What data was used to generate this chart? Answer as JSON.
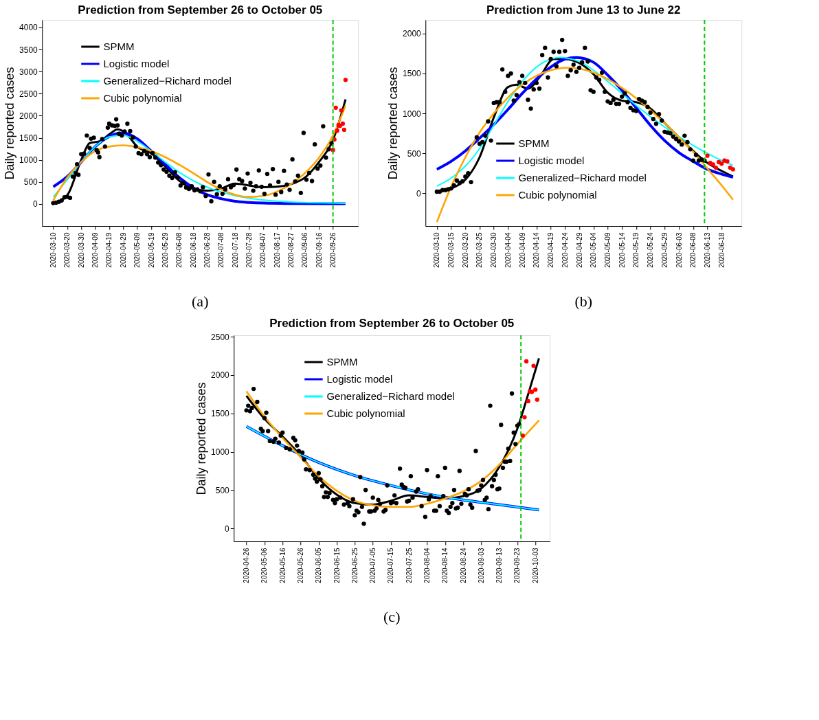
{
  "chart_data": [
    {
      "type": "line",
      "title": "Prediction from September 26 to October 05",
      "ylabel": "Daily reported cases",
      "annotations": [
        "(a)"
      ],
      "legend": "top left",
      "grid": false,
      "xlim": [
        "2020-03-02",
        "2020-10-14"
      ],
      "ylim": [
        -500,
        4170
      ],
      "xticks": [
        "2020-03-10",
        "2020-03-20",
        "2020-03-30",
        "2020-04-09",
        "2020-04-19",
        "2020-04-29",
        "2020-05-09",
        "2020-05-19",
        "2020-05-29",
        "2020-06-08",
        "2020-06-18",
        "2020-06-28",
        "2020-07-08",
        "2020-07-18",
        "2020-07-28",
        "2020-08-07",
        "2020-08-17",
        "2020-08-27",
        "2020-09-06",
        "2020-09-16",
        "2020-09-26"
      ],
      "yticks": [
        0,
        500,
        1000,
        1500,
        2000,
        2500,
        3000,
        3500,
        4000
      ],
      "ref_lines": [
        {
          "axis": "x",
          "value": "2020-09-26",
          "color": "#00cc00",
          "line_style": "dashed"
        }
      ],
      "series": [
        {
          "type": "scatter",
          "marker": "circle",
          "color": "#000000",
          "x": [
            "2020-03-10",
            "2020-03-12",
            "2020-03-14",
            "2020-03-16",
            "2020-03-18",
            "2020-03-20",
            "2020-03-22",
            "2020-03-24",
            "2020-03-26",
            "2020-03-27",
            "2020-03-28",
            "2020-03-30",
            "2020-04-01",
            "2020-04-03",
            "2020-04-05",
            "2020-04-06",
            "2020-04-08",
            "2020-04-10",
            "2020-04-11",
            "2020-04-12",
            "2020-04-14",
            "2020-04-16",
            "2020-04-18",
            "2020-04-19",
            "2020-04-21",
            "2020-04-23",
            "2020-04-24",
            "2020-04-25",
            "2020-04-26",
            "2020-04-28",
            "2020-04-30",
            "2020-05-02",
            "2020-05-04",
            "2020-05-06",
            "2020-05-08",
            "2020-05-10",
            "2020-05-12",
            "2020-05-14",
            "2020-05-16",
            "2020-05-18",
            "2020-05-20",
            "2020-05-22",
            "2020-05-24",
            "2020-05-26",
            "2020-05-28",
            "2020-05-30",
            "2020-06-01",
            "2020-06-03",
            "2020-06-05",
            "2020-06-07",
            "2020-06-09",
            "2020-06-11",
            "2020-06-13",
            "2020-06-15",
            "2020-06-17",
            "2020-06-19",
            "2020-06-21",
            "2020-06-23",
            "2020-06-25",
            "2020-06-27",
            "2020-06-29",
            "2020-07-01",
            "2020-07-03",
            "2020-07-05",
            "2020-07-07",
            "2020-07-09",
            "2020-07-11",
            "2020-07-13",
            "2020-07-15",
            "2020-07-17",
            "2020-07-19",
            "2020-07-21",
            "2020-07-23",
            "2020-07-25",
            "2020-07-27",
            "2020-07-29",
            "2020-07-31",
            "2020-08-02",
            "2020-08-04",
            "2020-08-06",
            "2020-08-08",
            "2020-08-10",
            "2020-08-12",
            "2020-08-14",
            "2020-08-16",
            "2020-08-18",
            "2020-08-20",
            "2020-08-22",
            "2020-08-24",
            "2020-08-26",
            "2020-08-28",
            "2020-08-30",
            "2020-09-01",
            "2020-09-03",
            "2020-09-05",
            "2020-09-07",
            "2020-09-09",
            "2020-09-11",
            "2020-09-13",
            "2020-09-15",
            "2020-09-17",
            "2020-09-19",
            "2020-09-21",
            "2020-09-23",
            "2020-09-25"
          ],
          "values": [
            20,
            30,
            50,
            80,
            150,
            160,
            140,
            620,
            700,
            900,
            660,
            1130,
            1140,
            1550,
            1270,
            1480,
            1500,
            1220,
            1170,
            1060,
            1470,
            1300,
            1730,
            1820,
            1780,
            1770,
            1920,
            1780,
            1590,
            1550,
            1640,
            1820,
            1650,
            1510,
            1300,
            1150,
            1130,
            1200,
            1130,
            1060,
            1150,
            1050,
            940,
            880,
            780,
            730,
            640,
            590,
            720,
            600,
            420,
            480,
            370,
            340,
            400,
            310,
            330,
            290,
            380,
            180,
            670,
            60,
            500,
            220,
            400,
            230,
            330,
            560,
            380,
            430,
            780,
            560,
            520,
            350,
            690,
            480,
            300,
            400,
            760,
            390,
            230,
            680,
            420,
            790,
            210,
            500,
            270,
            750,
            440,
            320,
            1010,
            510,
            640,
            250,
            1610,
            550,
            700,
            520,
            1350,
            800,
            870,
            1760,
            1050,
            1240,
            1370
          ]
        },
        {
          "type": "scatter",
          "marker": "circle",
          "color": "#ff0000",
          "x": [
            "2020-09-26",
            "2020-09-27",
            "2020-09-28",
            "2020-09-29",
            "2020-09-30",
            "2020-10-01",
            "2020-10-02",
            "2020-10-03",
            "2020-10-04",
            "2020-10-05"
          ],
          "values": [
            1220,
            1460,
            2180,
            1660,
            1790,
            1770,
            2120,
            1820,
            1680,
            2810
          ]
        },
        {
          "name": "SPMM",
          "color": "#000000",
          "x": [
            "2020-03-10",
            "2020-03-20",
            "2020-03-30",
            "2020-04-05",
            "2020-04-12",
            "2020-04-20",
            "2020-04-25",
            "2020-05-01",
            "2020-05-09",
            "2020-05-19",
            "2020-05-29",
            "2020-06-08",
            "2020-06-18",
            "2020-06-28",
            "2020-07-08",
            "2020-07-18",
            "2020-07-28",
            "2020-08-07",
            "2020-08-17",
            "2020-08-27",
            "2020-09-06",
            "2020-09-16",
            "2020-09-26",
            "2020-10-05"
          ],
          "values": [
            20,
            200,
            1000,
            1380,
            1420,
            1600,
            1690,
            1600,
            1300,
            1150,
            850,
            530,
            340,
            300,
            350,
            460,
            420,
            380,
            390,
            450,
            600,
            950,
            1450,
            2370
          ]
        },
        {
          "name": "Logistic model",
          "color": "#0000ff",
          "x": [
            "2020-03-10",
            "2020-03-20",
            "2020-03-30",
            "2020-04-09",
            "2020-04-19",
            "2020-04-29",
            "2020-05-09",
            "2020-05-19",
            "2020-05-29",
            "2020-06-08",
            "2020-06-18",
            "2020-06-28",
            "2020-07-08",
            "2020-07-18",
            "2020-07-28",
            "2020-08-07",
            "2020-08-27",
            "2020-09-26",
            "2020-10-05"
          ],
          "values": [
            390,
            620,
            950,
            1300,
            1530,
            1610,
            1480,
            1200,
            900,
            600,
            370,
            210,
            120,
            60,
            35,
            20,
            10,
            5,
            5
          ]
        },
        {
          "name": "Generalized−Richard model",
          "color": "#00ffff",
          "x": [
            "2020-03-10",
            "2020-03-20",
            "2020-03-30",
            "2020-04-09",
            "2020-04-19",
            "2020-04-29",
            "2020-05-09",
            "2020-05-19",
            "2020-05-29",
            "2020-06-08",
            "2020-06-18",
            "2020-06-28",
            "2020-07-08",
            "2020-07-18",
            "2020-07-28",
            "2020-08-07",
            "2020-08-27",
            "2020-09-26",
            "2020-10-05"
          ],
          "values": [
            160,
            550,
            950,
            1300,
            1520,
            1560,
            1420,
            1200,
            950,
            720,
            530,
            380,
            270,
            190,
            130,
            90,
            45,
            20,
            15
          ]
        },
        {
          "name": "Cubic polynomial",
          "color": "#ffa500",
          "x": [
            "2020-03-10",
            "2020-03-20",
            "2020-03-30",
            "2020-04-09",
            "2020-04-19",
            "2020-04-29",
            "2020-05-09",
            "2020-05-19",
            "2020-05-29",
            "2020-06-08",
            "2020-06-18",
            "2020-06-28",
            "2020-07-08",
            "2020-07-18",
            "2020-07-28",
            "2020-08-07",
            "2020-08-17",
            "2020-08-27",
            "2020-09-06",
            "2020-09-16",
            "2020-09-26",
            "2020-10-05"
          ],
          "values": [
            80,
            600,
            950,
            1200,
            1300,
            1330,
            1290,
            1200,
            1060,
            890,
            700,
            500,
            330,
            210,
            160,
            180,
            280,
            450,
            700,
            1050,
            1550,
            2230
          ]
        }
      ]
    },
    {
      "type": "line",
      "title": "Prediction from June 13 to June 22",
      "ylabel": "Daily reported cases",
      "annotations": [
        "(b)"
      ],
      "legend": "bottom",
      "grid": false,
      "xlim": [
        "2020-03-06",
        "2020-06-25"
      ],
      "ylim": [
        -410,
        2170
      ],
      "xticks": [
        "2020-03-10",
        "2020-03-15",
        "2020-03-20",
        "2020-03-25",
        "2020-03-30",
        "2020-04-04",
        "2020-04-09",
        "2020-04-14",
        "2020-04-19",
        "2020-04-24",
        "2020-04-29",
        "2020-05-04",
        "2020-05-09",
        "2020-05-14",
        "2020-05-19",
        "2020-05-24",
        "2020-05-29",
        "2020-06-03",
        "2020-06-08",
        "2020-06-13",
        "2020-06-18"
      ],
      "yticks": [
        0,
        500,
        1000,
        1500,
        2000
      ],
      "ref_lines": [
        {
          "axis": "x",
          "value": "2020-06-12",
          "color": "#00cc00",
          "line_style": "dashed"
        }
      ],
      "series": [
        {
          "type": "scatter",
          "marker": "circle",
          "color": "#000000",
          "x": [
            "2020-03-10",
            "2020-03-11",
            "2020-03-12",
            "2020-03-13",
            "2020-03-14",
            "2020-03-15",
            "2020-03-16",
            "2020-03-17",
            "2020-03-18",
            "2020-03-19",
            "2020-03-20",
            "2020-03-21",
            "2020-03-22",
            "2020-03-24",
            "2020-03-25",
            "2020-03-26",
            "2020-03-27",
            "2020-03-28",
            "2020-03-29",
            "2020-03-30",
            "2020-03-31",
            "2020-04-01",
            "2020-04-02",
            "2020-04-03",
            "2020-04-04",
            "2020-04-05",
            "2020-04-06",
            "2020-04-07",
            "2020-04-08",
            "2020-04-09",
            "2020-04-10",
            "2020-04-11",
            "2020-04-12",
            "2020-04-13",
            "2020-04-14",
            "2020-04-15",
            "2020-04-16",
            "2020-04-17",
            "2020-04-18",
            "2020-04-19",
            "2020-04-20",
            "2020-04-21",
            "2020-04-22",
            "2020-04-23",
            "2020-04-24",
            "2020-04-25",
            "2020-04-26",
            "2020-04-27",
            "2020-04-28",
            "2020-04-29",
            "2020-04-30",
            "2020-05-01",
            "2020-05-02",
            "2020-05-03",
            "2020-05-04",
            "2020-05-05",
            "2020-05-06",
            "2020-05-07",
            "2020-05-08",
            "2020-05-09",
            "2020-05-10",
            "2020-05-11",
            "2020-05-12",
            "2020-05-13",
            "2020-05-14",
            "2020-05-15",
            "2020-05-16",
            "2020-05-17",
            "2020-05-18",
            "2020-05-19",
            "2020-05-20",
            "2020-05-21",
            "2020-05-22",
            "2020-05-23",
            "2020-05-24",
            "2020-05-25",
            "2020-05-26",
            "2020-05-27",
            "2020-05-28",
            "2020-05-29",
            "2020-05-30",
            "2020-05-31",
            "2020-06-01",
            "2020-06-02",
            "2020-06-03",
            "2020-06-04",
            "2020-06-05",
            "2020-06-06",
            "2020-06-07",
            "2020-06-08",
            "2020-06-09",
            "2020-06-10",
            "2020-06-11",
            "2020-06-12"
          ],
          "values": [
            20,
            20,
            40,
            40,
            50,
            60,
            100,
            160,
            130,
            150,
            210,
            250,
            140,
            700,
            620,
            640,
            720,
            900,
            660,
            1130,
            1140,
            1140,
            1550,
            1270,
            1470,
            1500,
            1160,
            1230,
            1390,
            1470,
            1380,
            1170,
            1060,
            1300,
            1380,
            1310,
            1730,
            1820,
            1450,
            1680,
            1770,
            1590,
            1770,
            1920,
            1780,
            1470,
            1540,
            1610,
            1520,
            1570,
            1640,
            1820,
            1650,
            1290,
            1270,
            1450,
            1420,
            1510,
            1270,
            1150,
            1130,
            1170,
            1120,
            1120,
            1210,
            1250,
            1140,
            1070,
            1040,
            1030,
            1180,
            1160,
            1140,
            1080,
            1010,
            930,
            870,
            990,
            910,
            770,
            760,
            750,
            710,
            680,
            650,
            610,
            720,
            640,
            550,
            410,
            480,
            410,
            420,
            410
          ]
        },
        {
          "type": "scatter",
          "marker": "circle",
          "color": "#ff0000",
          "x": [
            "2020-06-13",
            "2020-06-14",
            "2020-06-15",
            "2020-06-16",
            "2020-06-17",
            "2020-06-18",
            "2020-06-19",
            "2020-06-20",
            "2020-06-21",
            "2020-06-22"
          ],
          "values": [
            470,
            380,
            360,
            320,
            390,
            370,
            410,
            400,
            320,
            300
          ]
        },
        {
          "name": "SPMM",
          "color": "#000000",
          "x": [
            "2020-03-10",
            "2020-03-15",
            "2020-03-20",
            "2020-03-25",
            "2020-03-30",
            "2020-04-04",
            "2020-04-07",
            "2020-04-11",
            "2020-04-15",
            "2020-04-20",
            "2020-04-24",
            "2020-04-29",
            "2020-05-04",
            "2020-05-09",
            "2020-05-14",
            "2020-05-19",
            "2020-05-24",
            "2020-05-29",
            "2020-06-03",
            "2020-06-08",
            "2020-06-13",
            "2020-06-18",
            "2020-06-22"
          ],
          "values": [
            20,
            60,
            170,
            450,
            950,
            1330,
            1360,
            1310,
            1450,
            1680,
            1680,
            1630,
            1490,
            1260,
            1160,
            1140,
            1060,
            880,
            700,
            530,
            380,
            280,
            210
          ]
        },
        {
          "name": "Logistic model",
          "color": "#0000ff",
          "x": [
            "2020-03-10",
            "2020-03-15",
            "2020-03-20",
            "2020-03-25",
            "2020-03-30",
            "2020-04-04",
            "2020-04-09",
            "2020-04-14",
            "2020-04-19",
            "2020-04-24",
            "2020-04-28",
            "2020-05-04",
            "2020-05-09",
            "2020-05-14",
            "2020-05-19",
            "2020-05-24",
            "2020-05-29",
            "2020-06-03",
            "2020-06-08",
            "2020-06-13",
            "2020-06-18",
            "2020-06-22"
          ],
          "values": [
            300,
            400,
            530,
            690,
            860,
            1050,
            1250,
            1430,
            1580,
            1680,
            1700,
            1640,
            1480,
            1290,
            1070,
            850,
            660,
            510,
            400,
            300,
            240,
            200
          ]
        },
        {
          "name": "Generalized−Richard model",
          "color": "#00ffff",
          "x": [
            "2020-03-10",
            "2020-03-15",
            "2020-03-20",
            "2020-03-25",
            "2020-03-30",
            "2020-04-04",
            "2020-04-09",
            "2020-04-14",
            "2020-04-19",
            "2020-04-22",
            "2020-04-29",
            "2020-05-04",
            "2020-05-09",
            "2020-05-14",
            "2020-05-19",
            "2020-05-24",
            "2020-05-29",
            "2020-06-03",
            "2020-06-08",
            "2020-06-13",
            "2020-06-18",
            "2020-06-22"
          ],
          "values": [
            90,
            190,
            340,
            560,
            850,
            1150,
            1400,
            1580,
            1680,
            1700,
            1650,
            1540,
            1400,
            1250,
            1100,
            960,
            830,
            710,
            600,
            500,
            410,
            350
          ]
        },
        {
          "name": "Cubic polynomial",
          "color": "#ffa500",
          "x": [
            "2020-03-10",
            "2020-03-15",
            "2020-03-20",
            "2020-03-25",
            "2020-03-30",
            "2020-04-04",
            "2020-04-09",
            "2020-04-14",
            "2020-04-19",
            "2020-04-24",
            "2020-04-29",
            "2020-05-04",
            "2020-05-09",
            "2020-05-14",
            "2020-05-19",
            "2020-05-24",
            "2020-05-29",
            "2020-06-03",
            "2020-06-08",
            "2020-06-13",
            "2020-06-18",
            "2020-06-22"
          ],
          "values": [
            -360,
            80,
            450,
            760,
            1000,
            1200,
            1360,
            1470,
            1540,
            1570,
            1560,
            1510,
            1430,
            1320,
            1190,
            1040,
            880,
            700,
            520,
            310,
            100,
            -80
          ]
        }
      ]
    },
    {
      "type": "line",
      "title": "Prediction from September 26 to October 05",
      "ylabel": "Daily reported cases",
      "annotations": [
        "(c)"
      ],
      "legend": "top",
      "grid": false,
      "xlim": [
        "2020-04-19",
        "2020-10-11"
      ],
      "ylim": [
        -170,
        2520
      ],
      "xticks": [
        "2020-04-26",
        "2020-05-06",
        "2020-05-16",
        "2020-05-26",
        "2020-06-05",
        "2020-06-15",
        "2020-06-25",
        "2020-07-05",
        "2020-07-15",
        "2020-07-25",
        "2020-08-04",
        "2020-08-14",
        "2020-08-24",
        "2020-09-03",
        "2020-09-13",
        "2020-09-23",
        "2020-10-03"
      ],
      "yticks": [
        0,
        500,
        1000,
        1500,
        2000,
        2500
      ],
      "ref_lines": [
        {
          "axis": "x",
          "value": "2020-09-25",
          "color": "#00cc00",
          "line_style": "dashed"
        }
      ],
      "series": [
        {
          "type": "scatter",
          "marker": "circle",
          "color": "#000000",
          "x": [
            "2020-04-26",
            "2020-04-27",
            "2020-04-28",
            "2020-04-29",
            "2020-04-30",
            "2020-05-02",
            "2020-05-04",
            "2020-05-05",
            "2020-05-06",
            "2020-05-07",
            "2020-05-08",
            "2020-05-09",
            "2020-05-11",
            "2020-05-12",
            "2020-05-14",
            "2020-05-15",
            "2020-05-16",
            "2020-05-18",
            "2020-05-20",
            "2020-05-22",
            "2020-05-23",
            "2020-05-24",
            "2020-05-25",
            "2020-05-27",
            "2020-05-28",
            "2020-05-29",
            "2020-05-31",
            "2020-06-02",
            "2020-06-03",
            "2020-06-04",
            "2020-06-05",
            "2020-06-06",
            "2020-06-07",
            "2020-06-08",
            "2020-06-09",
            "2020-06-10",
            "2020-06-11",
            "2020-06-13",
            "2020-06-14",
            "2020-06-15",
            "2020-06-17",
            "2020-06-19",
            "2020-06-21",
            "2020-06-22",
            "2020-06-24",
            "2020-06-25",
            "2020-06-26",
            "2020-06-27",
            "2020-06-28",
            "2020-06-29",
            "2020-06-30",
            "2020-07-01",
            "2020-07-03",
            "2020-07-04",
            "2020-07-05",
            "2020-07-06",
            "2020-07-07",
            "2020-07-08",
            "2020-07-09",
            "2020-07-11",
            "2020-07-12",
            "2020-07-13",
            "2020-07-15",
            "2020-07-16",
            "2020-07-17",
            "2020-07-18",
            "2020-07-20",
            "2020-07-21",
            "2020-07-22",
            "2020-07-23",
            "2020-07-24",
            "2020-07-25",
            "2020-07-26",
            "2020-07-27",
            "2020-07-29",
            "2020-07-30",
            "2020-08-01",
            "2020-08-03",
            "2020-08-04",
            "2020-08-05",
            "2020-08-06",
            "2020-08-08",
            "2020-08-09",
            "2020-08-10",
            "2020-08-11",
            "2020-08-13",
            "2020-08-14",
            "2020-08-15",
            "2020-08-16",
            "2020-08-17",
            "2020-08-18",
            "2020-08-19",
            "2020-08-20",
            "2020-08-21",
            "2020-08-22",
            "2020-08-23",
            "2020-08-25",
            "2020-08-26",
            "2020-08-27",
            "2020-08-28",
            "2020-08-29",
            "2020-08-31",
            "2020-09-01",
            "2020-09-02",
            "2020-09-03",
            "2020-09-04",
            "2020-09-05",
            "2020-09-06",
            "2020-09-07",
            "2020-09-08",
            "2020-09-09",
            "2020-09-10",
            "2020-09-11",
            "2020-09-12",
            "2020-09-13",
            "2020-09-14",
            "2020-09-15",
            "2020-09-16",
            "2020-09-17",
            "2020-09-18",
            "2020-09-19",
            "2020-09-20",
            "2020-09-21",
            "2020-09-22",
            "2020-09-23",
            "2020-09-24"
          ],
          "values": [
            1540,
            1600,
            1530,
            1570,
            1820,
            1650,
            1300,
            1270,
            1440,
            1510,
            1270,
            1140,
            1130,
            1170,
            1120,
            1210,
            1250,
            1050,
            1030,
            1180,
            1150,
            1080,
            1010,
            990,
            900,
            770,
            760,
            700,
            650,
            610,
            720,
            640,
            550,
            410,
            470,
            410,
            460,
            370,
            330,
            380,
            400,
            310,
            330,
            290,
            380,
            170,
            230,
            210,
            670,
            280,
            60,
            500,
            220,
            220,
            400,
            230,
            260,
            370,
            320,
            220,
            240,
            560,
            330,
            340,
            430,
            330,
            780,
            570,
            540,
            530,
            350,
            360,
            680,
            400,
            480,
            510,
            290,
            150,
            760,
            380,
            420,
            230,
            230,
            680,
            290,
            420,
            790,
            230,
            200,
            280,
            330,
            500,
            260,
            270,
            750,
            320,
            450,
            430,
            510,
            310,
            270,
            1010,
            490,
            500,
            560,
            630,
            370,
            400,
            250,
            1600,
            550,
            630,
            700,
            510,
            520,
            1350,
            790,
            870,
            870,
            1040,
            880,
            1760,
            1250,
            1100,
            1340,
            1360
          ]
        },
        {
          "type": "scatter",
          "marker": "circle",
          "color": "#ff0000",
          "x": [
            "2020-09-26",
            "2020-09-27",
            "2020-09-28",
            "2020-09-29",
            "2020-09-30",
            "2020-10-01",
            "2020-10-02",
            "2020-10-03",
            "2020-10-04"
          ],
          "values": [
            1210,
            1450,
            2180,
            1660,
            1790,
            1780,
            2120,
            1810,
            1680
          ]
        },
        {
          "name": "SPMM",
          "color": "#000000",
          "x": [
            "2020-04-26",
            "2020-05-06",
            "2020-05-16",
            "2020-05-26",
            "2020-06-05",
            "2020-06-15",
            "2020-06-25",
            "2020-07-05",
            "2020-07-15",
            "2020-07-25",
            "2020-08-04",
            "2020-08-14",
            "2020-08-24",
            "2020-09-03",
            "2020-09-13",
            "2020-09-23",
            "2020-09-29",
            "2020-10-05"
          ],
          "values": [
            1730,
            1430,
            1200,
            950,
            650,
            440,
            330,
            310,
            360,
            430,
            410,
            390,
            420,
            520,
            800,
            1300,
            1750,
            2220
          ]
        },
        {
          "name": "Logistic model",
          "color": "#0000ff",
          "x": [
            "2020-04-26",
            "2020-05-16",
            "2020-06-05",
            "2020-06-25",
            "2020-07-15",
            "2020-08-04",
            "2020-08-24",
            "2020-09-13",
            "2020-10-05"
          ],
          "values": [
            1330,
            1080,
            860,
            690,
            560,
            450,
            370,
            310,
            240
          ]
        },
        {
          "name": "Generalized−Richard model",
          "color": "#00ffff",
          "x": [
            "2020-04-26",
            "2020-05-16",
            "2020-06-05",
            "2020-06-25",
            "2020-07-15",
            "2020-08-04",
            "2020-08-24",
            "2020-09-13",
            "2020-10-05"
          ],
          "values": [
            1330,
            1080,
            860,
            690,
            560,
            450,
            370,
            310,
            240
          ]
        },
        {
          "name": "Cubic polynomial",
          "color": "#ffa500",
          "x": [
            "2020-04-26",
            "2020-05-06",
            "2020-05-16",
            "2020-05-26",
            "2020-06-05",
            "2020-06-15",
            "2020-06-25",
            "2020-07-05",
            "2020-07-15",
            "2020-07-25",
            "2020-08-04",
            "2020-08-14",
            "2020-08-24",
            "2020-09-03",
            "2020-09-13",
            "2020-09-23",
            "2020-10-05"
          ],
          "values": [
            1790,
            1460,
            1180,
            930,
            680,
            490,
            360,
            300,
            280,
            280,
            320,
            390,
            480,
            620,
            830,
            1100,
            1410
          ]
        }
      ]
    }
  ]
}
